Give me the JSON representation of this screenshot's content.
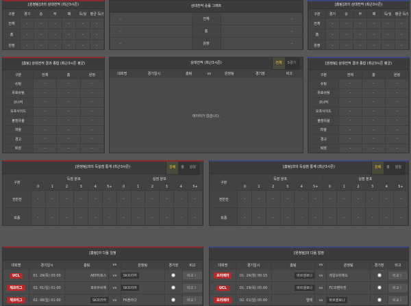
{
  "h2h_away": {
    "title": "[원정팀]과의 상대전적 (최근3시즌)",
    "columns": [
      "구분",
      "경기",
      "승",
      "무",
      "패",
      "득/실",
      "평균 득/실"
    ],
    "rows": [
      {
        "label": "전체",
        "values": [
          "-",
          "-",
          "-",
          "-",
          "-",
          "-"
        ]
      },
      {
        "label": "홈",
        "values": [
          "-",
          "-",
          "-",
          "-",
          "-",
          "-"
        ]
      },
      {
        "label": "원정",
        "values": [
          "-",
          "-",
          "-",
          "-",
          "-",
          "-"
        ]
      }
    ]
  },
  "graph": {
    "title": "상대전적 승률 그래프",
    "rows": [
      {
        "label": "전체",
        "left": "-",
        "right": "-"
      },
      {
        "label": "홈",
        "left": "-",
        "right": "-"
      },
      {
        "label": "원정",
        "left": "-",
        "right": "-"
      }
    ]
  },
  "h2h_home": {
    "title": "[홈팀]과의 상대전적 (최근3시즌)",
    "columns": [
      "구분",
      "경기",
      "승",
      "무",
      "패",
      "득/실",
      "평균 득/실"
    ],
    "rows": [
      {
        "label": "전체",
        "values": [
          "-",
          "-",
          "-",
          "-",
          "-",
          "-"
        ]
      },
      {
        "label": "홈",
        "values": [
          "-",
          "-",
          "-",
          "-",
          "-",
          "-"
        ]
      },
      {
        "label": "원정",
        "values": [
          "-",
          "-",
          "-",
          "-",
          "-",
          "-"
        ]
      }
    ]
  },
  "summary_home": {
    "title": "[홈팀] 상대전적 결과 종합 (최근3시즌 평균)",
    "columns": [
      "구분",
      "전체",
      "홈",
      "원정"
    ],
    "rows": [
      {
        "label": "슈팅",
        "values": [
          "-",
          "-",
          "-"
        ]
      },
      {
        "label": "유효슈팅",
        "values": [
          "-",
          "-",
          "-"
        ]
      },
      {
        "label": "코너킥",
        "values": [
          "-",
          "-",
          "-"
        ]
      },
      {
        "label": "오프사이드",
        "values": [
          "-",
          "-",
          "-"
        ]
      },
      {
        "label": "볼점유율",
        "values": [
          "-",
          "-",
          "-"
        ]
      },
      {
        "label": "파울",
        "values": [
          "-",
          "-",
          "-"
        ]
      },
      {
        "label": "경고",
        "values": [
          "-",
          "-",
          "-"
        ]
      },
      {
        "label": "퇴장",
        "values": [
          "-",
          "-",
          "-"
        ]
      }
    ]
  },
  "h2h_list": {
    "title": "상대전적 (최근3시즌)",
    "tabs": [
      "전체",
      "5경기"
    ],
    "active_tab": 0,
    "columns": [
      "대회명",
      "경기일시",
      "홈팀",
      "vs",
      "원정팀",
      "경기장",
      "비고"
    ],
    "empty": "데이터가 없습니다."
  },
  "summary_away": {
    "title": "[원정팀] 상대전적 결과 종합 (최근3시즌 평균)",
    "columns": [
      "구분",
      "전체",
      "홈",
      "원정"
    ],
    "rows": [
      {
        "label": "슈팅",
        "values": [
          "-",
          "-",
          "-"
        ]
      },
      {
        "label": "유효슈팅",
        "values": [
          "-",
          "-",
          "-"
        ]
      },
      {
        "label": "코너킥",
        "values": [
          "-",
          "-",
          "-"
        ]
      },
      {
        "label": "오프사이드",
        "values": [
          "-",
          "-",
          "-"
        ]
      },
      {
        "label": "볼점유율",
        "values": [
          "-",
          "-",
          "-"
        ]
      },
      {
        "label": "파울",
        "values": [
          "-",
          "-",
          "-"
        ]
      },
      {
        "label": "경고",
        "values": [
          "-",
          "-",
          "-"
        ]
      },
      {
        "label": "퇴장",
        "values": [
          "-",
          "-",
          "-"
        ]
      }
    ]
  },
  "goals_away": {
    "title": "[원정팀]과의 득실점 통계 (최근3시즌)",
    "tabs": [
      "전체",
      "홈",
      "원정"
    ],
    "active_tab": 0,
    "label_col": "구분",
    "groups": [
      "득점 분포",
      "실점 분포"
    ],
    "buckets": [
      "0",
      "1",
      "2",
      "3",
      "4",
      "5+"
    ],
    "rows": [
      {
        "label": "전반전",
        "values": [
          "-",
          "-",
          "-",
          "-",
          "-",
          "-",
          "-",
          "-",
          "-",
          "-",
          "-",
          "-"
        ]
      },
      {
        "label": "최종",
        "values": [
          "-",
          "-",
          "-",
          "-",
          "-",
          "-",
          "-",
          "-",
          "-",
          "-",
          "-",
          "-"
        ]
      }
    ]
  },
  "goals_home": {
    "title": "[홈팀]과의 득실점 통계 (최근3시즌)",
    "tabs": [
      "전체",
      "홈",
      "원정"
    ],
    "active_tab": 0,
    "label_col": "구분",
    "groups": [
      "득점 분포",
      "실점 분포"
    ],
    "buckets": [
      "0",
      "1",
      "2",
      "3",
      "4",
      "5+"
    ],
    "rows": [
      {
        "label": "전반전",
        "values": [
          "-",
          "-",
          "-",
          "-",
          "-",
          "-",
          "-",
          "-",
          "-",
          "-",
          "-",
          "-"
        ]
      },
      {
        "label": "최종",
        "values": [
          "-",
          "-",
          "-",
          "-",
          "-",
          "-",
          "-",
          "-",
          "-",
          "-",
          "-",
          "-"
        ]
      }
    ]
  },
  "next_home": {
    "title": "[홈팀]의 다음 일정",
    "columns": [
      "대회명",
      "경기일시",
      "홈팀",
      "vs",
      "원정팀",
      "경기장",
      "비고"
    ],
    "rows": [
      {
        "league": "UCL",
        "date": "01. 29(목) 05:00",
        "home": "AEP피포스",
        "away": "SK프라하",
        "highlight": "away",
        "button": "비교 〉"
      },
      {
        "league": "체코리그",
        "date": "02. 01(일) 01:00",
        "home": "파르두비체",
        "away": "SK프라하",
        "highlight": "away",
        "button": "비교 〉"
      },
      {
        "league": "체코리그",
        "date": "02. 08(일) 01:00",
        "home": "SK프라하",
        "away": "FK플라다",
        "highlight": "home",
        "button": "비교 〉"
      }
    ]
  },
  "next_away": {
    "title": "[원정팀]의 다음 일정",
    "columns": [
      "대회명",
      "경기일시",
      "홈팀",
      "vs",
      "원정팀",
      "경기장",
      "비고"
    ],
    "rows": [
      {
        "league": "프리메라",
        "date": "01. 26(월) 00:15",
        "home": "바르셀로나",
        "away": "레알오비에도",
        "highlight": "home",
        "button": "비교 〉"
      },
      {
        "league": "UCL",
        "date": "01. 29(목) 05:00",
        "home": "바르셀로나",
        "away": "FC코펜하겐",
        "highlight": "home",
        "button": "비교 〉"
      },
      {
        "league": "프리메라",
        "date": "02. 01(일) 05:00",
        "home": "엘체",
        "away": "바르셀로나",
        "highlight": "away",
        "button": "비교 〉"
      }
    ]
  },
  "colors": {
    "home_accent": "#8a2a2a",
    "away_accent": "#3a4a80",
    "badge": "#b52a2a",
    "active_tab": "#f0d040"
  }
}
